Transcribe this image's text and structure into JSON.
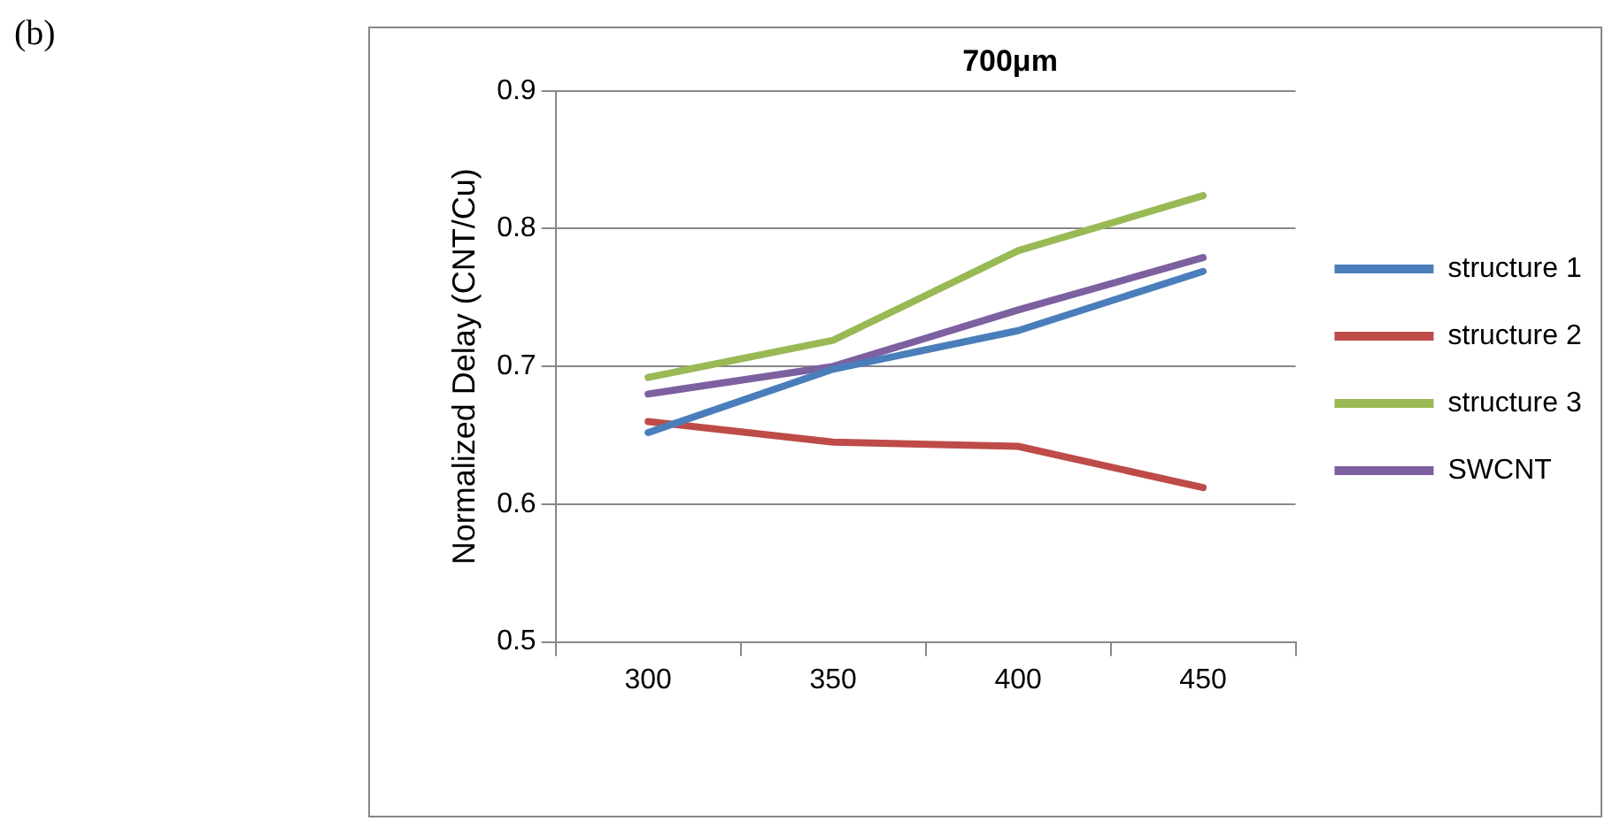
{
  "chart_data": {
    "type": "line",
    "title": "700μm",
    "ylabel": "Normalized Delay (CNT/Cu)",
    "annotations": [
      "(b)"
    ],
    "categories": [
      "300",
      "350",
      "400",
      "450"
    ],
    "series": [
      {
        "name": "structure 1",
        "color": "#4a7ebb",
        "values": [
          0.652,
          0.698,
          0.726,
          0.769
        ]
      },
      {
        "name": "structure 2",
        "color": "#be4b48",
        "values": [
          0.66,
          0.645,
          0.642,
          0.612
        ]
      },
      {
        "name": "structure 3",
        "color": "#98b954",
        "values": [
          0.692,
          0.719,
          0.784,
          0.824
        ]
      },
      {
        "name": "SWCNT",
        "color": "#7d60a0",
        "values": [
          0.68,
          0.7,
          0.741,
          0.779
        ]
      }
    ],
    "ylim": [
      0.5,
      0.9
    ],
    "yticks": [
      0.5,
      0.6,
      0.7,
      0.8,
      0.9
    ],
    "grid": "y",
    "legend": "right",
    "marker": "none",
    "line_style": "solid"
  }
}
